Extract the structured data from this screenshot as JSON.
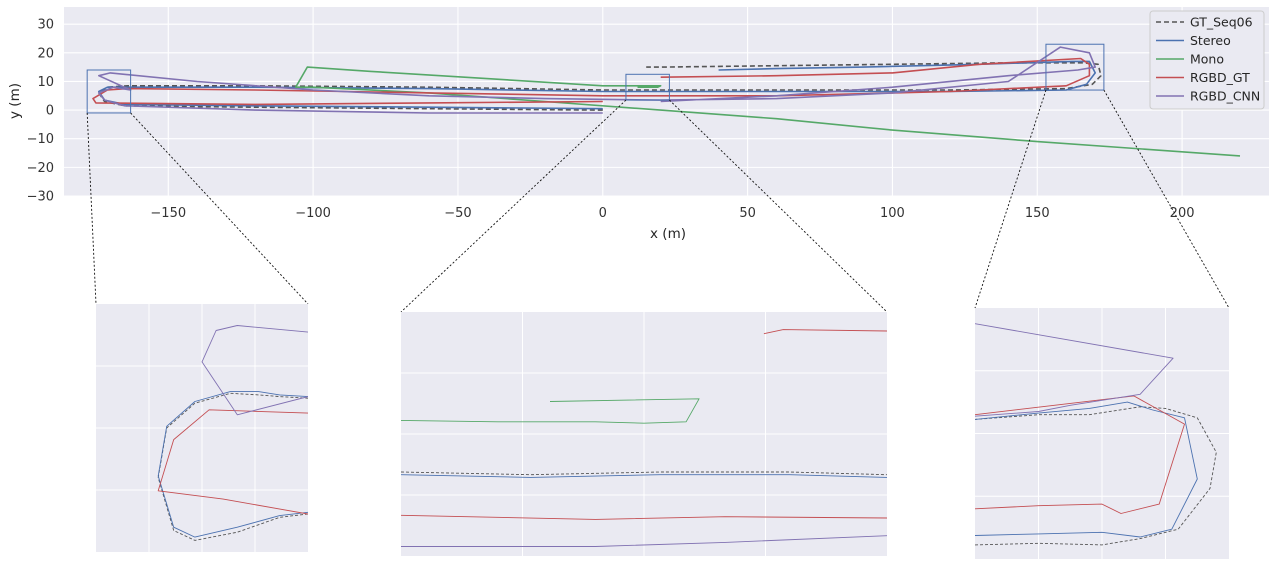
{
  "chart_data": [
    {
      "type": "line",
      "title": "",
      "xlabel": "x (m)",
      "ylabel": "y (m)",
      "xlim": [
        -186,
        230
      ],
      "ylim": [
        -30,
        36
      ],
      "xticks": [
        -150,
        -100,
        -50,
        0,
        50,
        100,
        150,
        200
      ],
      "yticks": [
        -30,
        -20,
        -10,
        0,
        10,
        20,
        30
      ],
      "xtick_labels": [
        "−150",
        "−100",
        "−50",
        "0",
        "50",
        "100",
        "150",
        "200"
      ],
      "ytick_labels": [
        "−30",
        "−20",
        "−10",
        "0",
        "10",
        "20",
        "30"
      ],
      "grid": true,
      "legend_position": "top-right",
      "series": [
        {
          "name": "GT_Seq06",
          "color": "#555555",
          "style": "dashed",
          "x": [
            0,
            -60,
            -120,
            -165,
            -172,
            -174,
            -171,
            -164,
            -120,
            -60,
            0,
            60,
            120,
            160,
            169,
            172,
            171,
            166,
            140,
            100,
            60,
            20,
            15
          ],
          "y": [
            0,
            0.5,
            1,
            1.5,
            3,
            6,
            8,
            8.5,
            8.5,
            8,
            7,
            7,
            7,
            7.5,
            9,
            12,
            16,
            16.5,
            16.5,
            16,
            15.5,
            15,
            15
          ]
        },
        {
          "name": "Stereo",
          "color": "#4c72b0",
          "style": "solid",
          "x": [
            0,
            -60,
            -120,
            -165,
            -172,
            -174,
            -171,
            -164,
            -120,
            -60,
            0,
            60,
            120,
            160,
            167,
            170,
            168,
            162,
            130,
            90,
            60,
            40
          ],
          "y": [
            0.5,
            1,
            1.5,
            2,
            3.5,
            6.5,
            8,
            8,
            8,
            7.5,
            6.5,
            6.5,
            6.5,
            7,
            9,
            13,
            17,
            17,
            16,
            15,
            14.5,
            14
          ]
        },
        {
          "name": "Mono",
          "color": "#55a868",
          "style": "solid",
          "x": [
            220,
            150,
            100,
            60,
            20,
            -20,
            -60,
            -100,
            -106,
            -102,
            -80,
            -40,
            0,
            20,
            19,
            12
          ],
          "y": [
            -16,
            -11,
            -7,
            -3,
            0,
            3,
            6,
            8,
            8,
            15,
            13.5,
            11,
            8.5,
            8.5,
            8,
            8
          ]
        },
        {
          "name": "RGBD_GT",
          "color": "#c44e52",
          "style": "solid",
          "x": [
            0,
            -60,
            -120,
            -175,
            -176,
            -171,
            -164,
            -120,
            -60,
            0,
            60,
            120,
            160,
            168,
            168,
            165,
            130,
            100,
            60,
            20
          ],
          "y": [
            3,
            2.5,
            2,
            2.5,
            4,
            7,
            7.5,
            7,
            6,
            5,
            5,
            6.5,
            8.5,
            12,
            16,
            18,
            16,
            13,
            12,
            11.5
          ]
        },
        {
          "name": "RGBD_CNN",
          "color": "#8172b2",
          "style": "solid",
          "x": [
            0,
            -60,
            -120,
            -165,
            -172,
            -174,
            -169,
            -163,
            -174,
            -170,
            -140,
            -100,
            -60,
            -20,
            20,
            60,
            100,
            140,
            158,
            168,
            170,
            164,
            140,
            100,
            60,
            20
          ],
          "y": [
            -1,
            -1,
            0,
            1.5,
            3.5,
            6,
            8,
            7,
            12,
            13,
            10,
            7,
            5,
            4,
            3.5,
            4,
            6,
            10,
            22,
            20,
            15,
            14,
            12,
            8,
            5,
            3
          ]
        }
      ]
    },
    {
      "type": "line",
      "title": "",
      "xlabel": "",
      "ylabel": "",
      "xlim": [
        -178,
        -163
      ],
      "ylim": [
        -1,
        14
      ],
      "grid": true,
      "legend_position": "none",
      "series": [
        {
          "name": "GT_Seq06",
          "color": "#555555",
          "style": "dashed",
          "x": [
            -163,
            -165,
            -168,
            -171,
            -172.5,
            -173.6,
            -173,
            -171,
            -168.5,
            -166.5,
            -165,
            -163
          ],
          "y": [
            1.3,
            1.1,
            0.2,
            -0.3,
            0.3,
            3.5,
            6.5,
            8,
            8.6,
            8.5,
            8.4,
            8.3
          ]
        },
        {
          "name": "Stereo",
          "color": "#4c72b0",
          "style": "solid",
          "x": [
            -163,
            -165,
            -168,
            -171,
            -172.5,
            -173.6,
            -173,
            -171,
            -168.5,
            -166.5,
            -165,
            -163
          ],
          "y": [
            1.4,
            1.2,
            0.5,
            -0.1,
            0.5,
            3.6,
            6.6,
            8.1,
            8.7,
            8.7,
            8.5,
            8.4
          ]
        },
        {
          "name": "RGBD_GT",
          "color": "#c44e52",
          "style": "solid",
          "x": [
            -163,
            -169,
            -173.6,
            -172.5,
            -170,
            -163
          ],
          "y": [
            1.3,
            2.2,
            2.7,
            5.8,
            7.6,
            7.4
          ]
        },
        {
          "name": "RGBD_CNN",
          "color": "#8172b2",
          "style": "solid",
          "x": [
            -163,
            -168,
            -169.5,
            -170.5,
            -168,
            -163
          ],
          "y": [
            12.3,
            12.7,
            12.4,
            10.5,
            7.3,
            8.4
          ]
        }
      ]
    },
    {
      "type": "line",
      "title": "",
      "xlabel": "",
      "ylabel": "",
      "xlim": [
        8,
        23
      ],
      "ylim": [
        3.5,
        12.5
      ],
      "grid": true,
      "legend_position": "none",
      "series": [
        {
          "name": "GT_Seq06",
          "color": "#555555",
          "style": "dashed",
          "x": [
            8,
            12,
            16,
            20,
            23
          ],
          "y": [
            6.6,
            6.5,
            6.6,
            6.6,
            6.5
          ]
        },
        {
          "name": "Stereo",
          "color": "#4c72b0",
          "style": "solid",
          "x": [
            8,
            12,
            16,
            20,
            23
          ],
          "y": [
            6.5,
            6.4,
            6.5,
            6.5,
            6.4
          ]
        },
        {
          "name": "Mono",
          "color": "#55a868",
          "style": "solid",
          "x": [
            8,
            11,
            14,
            15.5,
            16.8,
            17.2,
            12.6
          ],
          "y": [
            8.5,
            8.45,
            8.45,
            8.4,
            8.45,
            9.3,
            9.2
          ]
        },
        {
          "name": "RGBD_GT",
          "color": "#c44e52",
          "style": "solid",
          "x": [
            8,
            14,
            18,
            23
          ],
          "y": [
            5.0,
            4.85,
            4.95,
            4.9
          ]
        },
        {
          "name": "RGBD_CNN",
          "color": "#8172b2",
          "style": "solid",
          "x": [
            8,
            14,
            18,
            23
          ],
          "y": [
            3.85,
            3.85,
            4.0,
            4.25
          ]
        },
        {
          "name": "RGBD_GT",
          "color": "#c44e52",
          "style": "solid",
          "x": [
            19.2,
            19.8,
            23
          ],
          "y": [
            11.7,
            11.85,
            11.8
          ]
        }
      ]
    },
    {
      "type": "line",
      "title": "",
      "xlabel": "",
      "ylabel": "",
      "xlim": [
        153,
        173
      ],
      "ylim": [
        7,
        23
      ],
      "grid": true,
      "legend_position": "none",
      "series": [
        {
          "name": "GT_Seq06",
          "color": "#555555",
          "style": "dashed",
          "x": [
            153,
            158,
            163,
            166,
            169,
            171.5,
            172,
            170.5,
            168,
            166,
            162,
            158,
            153
          ],
          "y": [
            7.9,
            8.0,
            7.9,
            8.3,
            8.9,
            11.5,
            13.8,
            16,
            16.6,
            16.7,
            16.2,
            16.2,
            15.9
          ]
        },
        {
          "name": "Stereo",
          "color": "#4c72b0",
          "style": "solid",
          "x": [
            153,
            158,
            163,
            166,
            168.5,
            170.5,
            169.5,
            167,
            165,
            162,
            158,
            153
          ],
          "y": [
            8.5,
            8.6,
            8.7,
            8.4,
            8.9,
            12.1,
            16.0,
            16.5,
            17.0,
            16.6,
            16.3,
            15.9
          ]
        },
        {
          "name": "RGBD_GT",
          "color": "#c44e52",
          "style": "solid",
          "x": [
            153,
            158,
            163,
            164.5,
            167.5,
            169.5,
            165.5,
            153
          ],
          "y": [
            10.2,
            10.4,
            10.5,
            9.9,
            10.5,
            15.6,
            17.4,
            16.2
          ]
        },
        {
          "name": "RGBD_CNN",
          "color": "#8172b2",
          "style": "solid",
          "x": [
            153,
            158,
            160.5,
            166,
            168.6,
            153
          ],
          "y": [
            16.1,
            16.4,
            16.8,
            17.5,
            19.8,
            22.0
          ]
        }
      ]
    }
  ]
}
